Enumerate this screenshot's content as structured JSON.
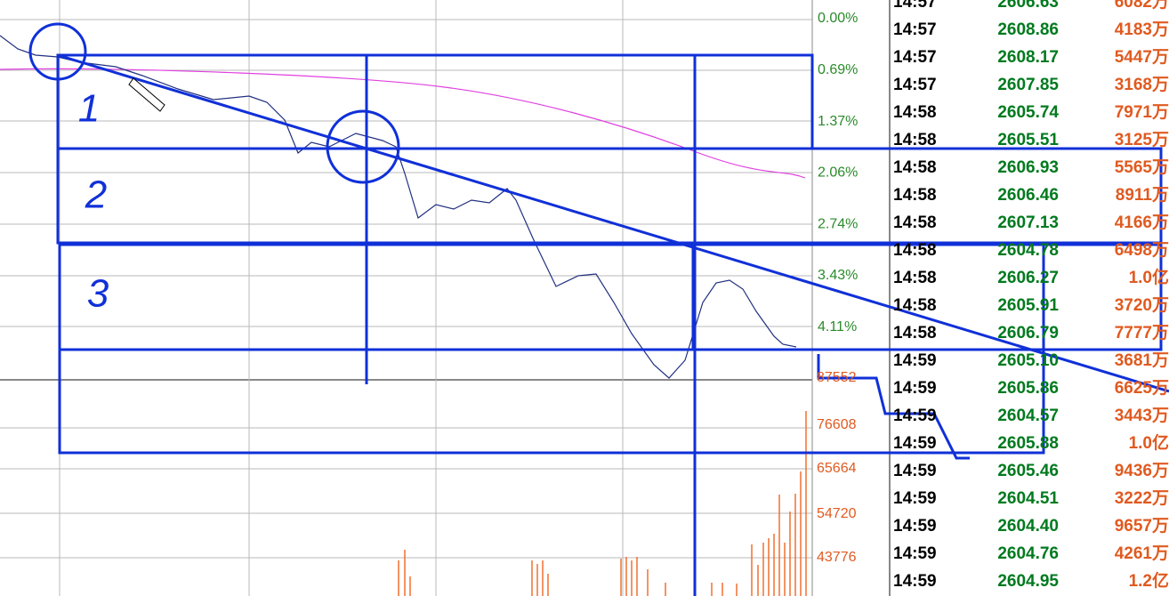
{
  "price_axis": {
    "labels": [
      "0.00%",
      "0.69%",
      "1.37%",
      "2.06%",
      "2.74%",
      "3.43%",
      "4.11%"
    ]
  },
  "volume_axis": {
    "labels": [
      "87552",
      "76608",
      "65664",
      "54720",
      "43776"
    ]
  },
  "annotations": [
    "1",
    "2",
    "3"
  ],
  "ticks": {
    "rows": [
      [
        "14:57",
        "2606.63",
        "6082万"
      ],
      [
        "14:57",
        "2608.86",
        "4183万"
      ],
      [
        "14:57",
        "2608.17",
        "5447万"
      ],
      [
        "14:57",
        "2607.85",
        "3168万"
      ],
      [
        "14:58",
        "2605.74",
        "7971万"
      ],
      [
        "14:58",
        "2605.51",
        "3125万"
      ],
      [
        "14:58",
        "2606.93",
        "5565万"
      ],
      [
        "14:58",
        "2606.46",
        "8911万"
      ],
      [
        "14:58",
        "2607.13",
        "4166万"
      ],
      [
        "14:58",
        "2604.78",
        "6498万"
      ],
      [
        "14:58",
        "2606.27",
        "1.0亿"
      ],
      [
        "14:58",
        "2605.91",
        "3720万"
      ],
      [
        "14:58",
        "2606.79",
        "7777万"
      ],
      [
        "14:59",
        "2605.10",
        "3681万"
      ],
      [
        "14:59",
        "2605.86",
        "6625万"
      ],
      [
        "14:59",
        "2604.57",
        "3443万"
      ],
      [
        "14:59",
        "2605.88",
        "1.0亿"
      ],
      [
        "14:59",
        "2605.46",
        "9436万"
      ],
      [
        "14:59",
        "2604.51",
        "3222万"
      ],
      [
        "14:59",
        "2604.40",
        "9657万"
      ],
      [
        "14:59",
        "2604.76",
        "4261万"
      ],
      [
        "14:59",
        "2604.95",
        "1.2亿"
      ]
    ]
  }
}
